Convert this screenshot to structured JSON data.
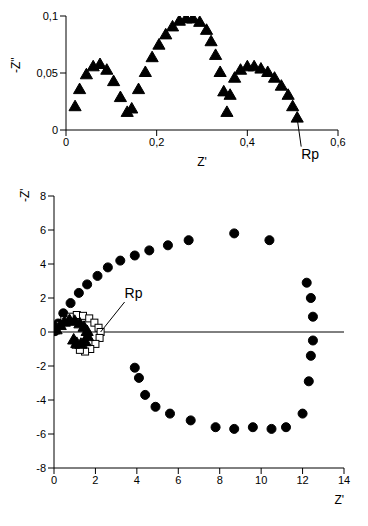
{
  "chart_data": [
    {
      "type": "scatter",
      "x_label": "Z'",
      "y_label": "-Z\"",
      "xlim": [
        0,
        0.6
      ],
      "xticks": [
        0,
        {
          "value": 0.2,
          "label": "0,2"
        },
        {
          "value": 0.4,
          "label": "0,4"
        },
        {
          "value": 0.6,
          "label": "0,6"
        }
      ],
      "ylim": [
        0,
        0.1
      ],
      "yticks": [
        0,
        {
          "value": 0.05,
          "label": "0,05"
        },
        {
          "value": 0.1,
          "label": "0,1"
        }
      ],
      "grid": false,
      "series": [
        {
          "color": "#000000",
          "marker": "triangle",
          "x": [
            0.02,
            0.03,
            0.045,
            0.06,
            0.075,
            0.09,
            0.105,
            0.12,
            0.135,
            0.145,
            0.16,
            0.175,
            0.19,
            0.205,
            0.22,
            0.235,
            0.25,
            0.265,
            0.28,
            0.295,
            0.31,
            0.32,
            0.33,
            0.34,
            0.348,
            0.355,
            0.362,
            0.372,
            0.385,
            0.4,
            0.415,
            0.43,
            0.445,
            0.46,
            0.475,
            0.49,
            0.5,
            0.51
          ],
          "values": [
            0.02,
            0.035,
            0.048,
            0.055,
            0.057,
            0.052,
            0.042,
            0.028,
            0.015,
            0.018,
            0.035,
            0.05,
            0.063,
            0.074,
            0.083,
            0.09,
            0.095,
            0.097,
            0.097,
            0.094,
            0.087,
            0.077,
            0.065,
            0.05,
            0.033,
            0.015,
            0.03,
            0.045,
            0.052,
            0.055,
            0.055,
            0.053,
            0.05,
            0.045,
            0.038,
            0.03,
            0.02,
            0.01
          ]
        }
      ],
      "annotations": [
        {
          "text": "Rp",
          "x": 0.51,
          "y": 0.01
        }
      ]
    },
    {
      "type": "scatter",
      "x_label": "Z'",
      "y_label": "-Z\"",
      "xlim": [
        0,
        14
      ],
      "xticks": [
        0,
        2,
        4,
        6,
        8,
        10,
        12,
        14
      ],
      "ylim": [
        -8,
        8
      ],
      "yticks": [
        -8,
        -6,
        -4,
        -2,
        0,
        2,
        4,
        6,
        8
      ],
      "grid": false,
      "series": [
        {
          "color": "#000000",
          "marker": "circle",
          "x": [
            0.05,
            0.2,
            0.45,
            0.8,
            1.2,
            1.6,
            2.1,
            2.6,
            3.2,
            3.9,
            4.6,
            5.5,
            6.5,
            8.7,
            10.4,
            12.2,
            12.4,
            12.5,
            12.5,
            12.4,
            12.3,
            12.0,
            11.2,
            10.5,
            9.6,
            8.7,
            7.8,
            6.6,
            5.6,
            4.9,
            4.4,
            4.1,
            3.9
          ],
          "values": [
            0.05,
            0.5,
            1.1,
            1.7,
            2.3,
            2.8,
            3.3,
            3.8,
            4.2,
            4.5,
            4.8,
            5.1,
            5.4,
            5.8,
            5.4,
            2.9,
            2.0,
            0.9,
            -0.5,
            -1.4,
            -2.9,
            -4.8,
            -5.6,
            -5.7,
            -5.6,
            -5.7,
            -5.6,
            -5.2,
            -4.8,
            -4.4,
            -3.7,
            -2.7,
            -2.1
          ]
        },
        {
          "color": "#000000",
          "marker": "open-square",
          "x": [
            0.1,
            0.3,
            0.5,
            0.8,
            1.1,
            1.4,
            1.7,
            1.95,
            2.15,
            2.25,
            2.2,
            2.0,
            1.75,
            1.5,
            1.25,
            1.05
          ],
          "values": [
            0.1,
            0.4,
            0.7,
            0.9,
            1.0,
            0.95,
            0.8,
            0.55,
            0.25,
            0,
            -0.35,
            -0.7,
            -1.0,
            -1.15,
            -1.05,
            -0.75
          ]
        },
        {
          "color": "#000000",
          "marker": "triangle",
          "x": [
            0.1,
            0.3,
            0.5,
            0.75,
            1.0,
            1.25,
            1.45,
            1.6,
            1.62,
            1.5,
            1.3,
            1.1,
            0.95
          ],
          "values": [
            0.1,
            0.35,
            0.55,
            0.65,
            0.6,
            0.45,
            0.25,
            0,
            -0.3,
            -0.6,
            -0.75,
            -0.7,
            -0.5
          ]
        }
      ],
      "annotations": [
        {
          "text": "Rp",
          "x": 2.25,
          "y": 0
        }
      ]
    }
  ]
}
